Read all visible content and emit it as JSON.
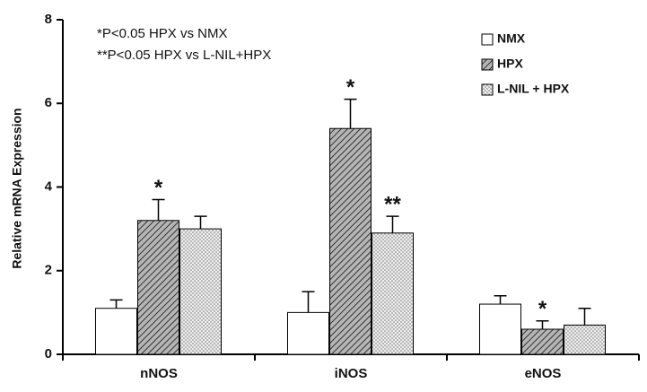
{
  "chart_data": {
    "type": "bar",
    "ylabel": "Relative mRNA Expression",
    "annotations": [
      "*P<0.05 HPX vs NMX",
      "**P<0.05 HPX vs L-NIL+HPX"
    ],
    "categories": [
      "nNOS",
      "iNOS",
      "eNOS"
    ],
    "series": [
      {
        "name": "NMX",
        "color": "#ffffff",
        "pattern": "none",
        "values": [
          1.1,
          1.0,
          1.2
        ],
        "errors": [
          0.2,
          0.5,
          0.2
        ]
      },
      {
        "name": "HPX",
        "color": "#8a8a8a",
        "pattern": "hatch",
        "values": [
          3.2,
          5.4,
          0.6
        ],
        "errors": [
          0.5,
          0.7,
          0.2
        ],
        "significance": [
          "*",
          "*",
          "*"
        ]
      },
      {
        "name": "L-NIL + HPX",
        "color": "#cfcfcf",
        "pattern": "dots",
        "values": [
          3.0,
          2.9,
          0.7
        ],
        "errors": [
          0.3,
          0.4,
          0.4
        ],
        "significance": [
          null,
          "**",
          null
        ]
      }
    ],
    "ylim": [
      0,
      8
    ],
    "yticks": [
      0,
      2,
      4,
      6,
      8
    ],
    "legend": "upper right",
    "grid": false
  }
}
